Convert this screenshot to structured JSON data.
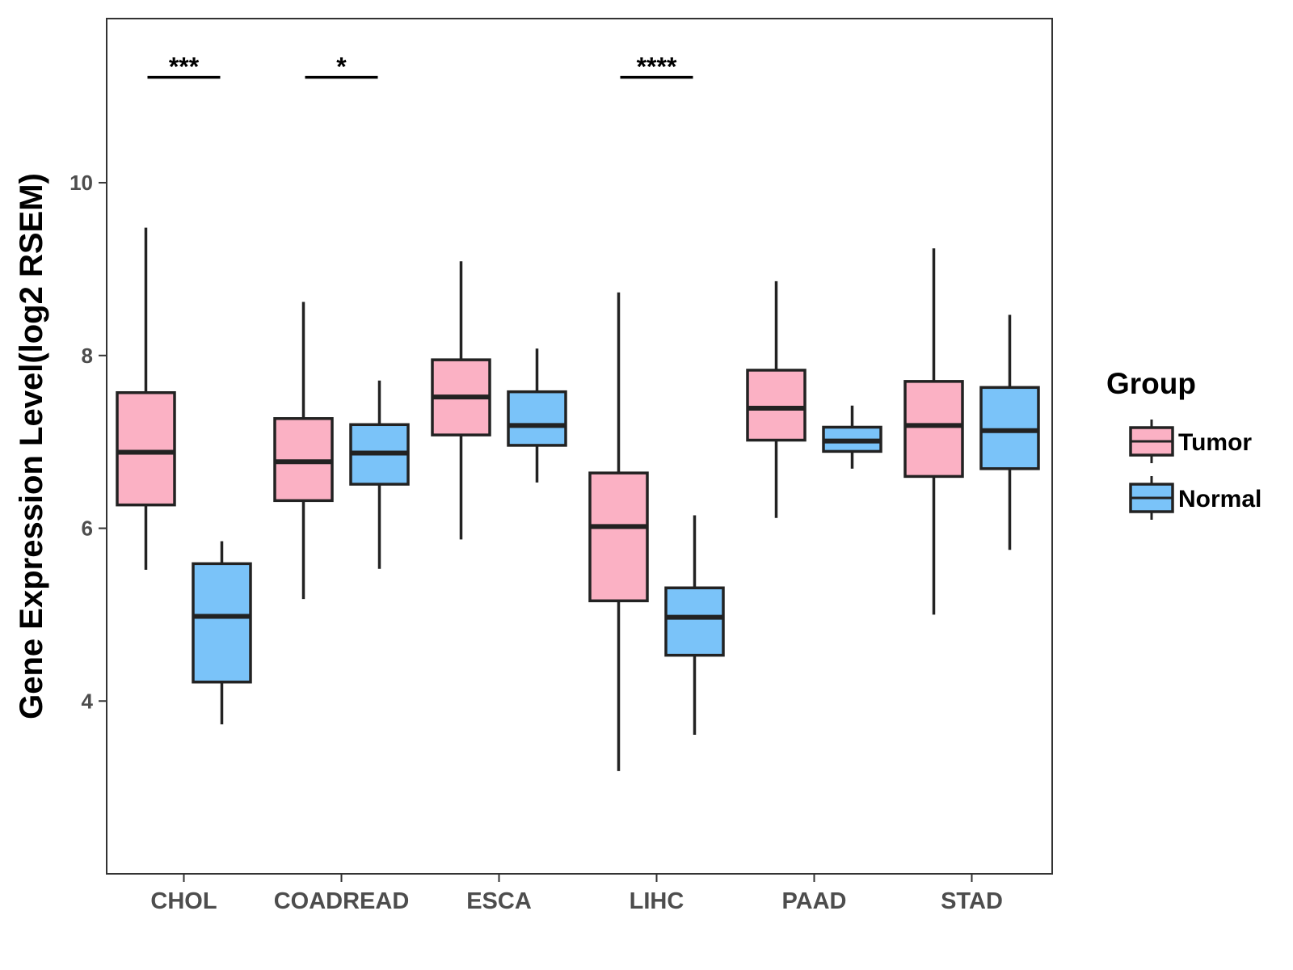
{
  "chart_data": {
    "type": "boxplot",
    "title": "",
    "xlabel": "",
    "ylabel": "Gene Expression Level(log2 RSEM)",
    "ylim": [
      2.0,
      11.9
    ],
    "yticks": [
      4,
      6,
      8,
      10
    ],
    "grid": false,
    "legend_position": "right",
    "categories": [
      "CHOL",
      "COADREAD",
      "ESCA",
      "LIHC",
      "PAAD",
      "STAD"
    ],
    "series": [
      {
        "name": "Tumor",
        "color": "#FBB1C4",
        "boxes": [
          {
            "whisker_low": 5.52,
            "q1": 6.27,
            "median": 6.88,
            "q3": 7.57,
            "whisker_high": 9.48
          },
          {
            "whisker_low": 5.18,
            "q1": 6.32,
            "median": 6.77,
            "q3": 7.27,
            "whisker_high": 8.62
          },
          {
            "whisker_low": 5.87,
            "q1": 7.08,
            "median": 7.52,
            "q3": 7.95,
            "whisker_high": 9.09
          },
          {
            "whisker_low": 3.19,
            "q1": 5.16,
            "median": 6.02,
            "q3": 6.64,
            "whisker_high": 8.73
          },
          {
            "whisker_low": 6.12,
            "q1": 7.02,
            "median": 7.39,
            "q3": 7.83,
            "whisker_high": 8.86
          },
          {
            "whisker_low": 5.0,
            "q1": 6.6,
            "median": 7.19,
            "q3": 7.7,
            "whisker_high": 9.24
          }
        ]
      },
      {
        "name": "Normal",
        "color": "#7AC3F9",
        "boxes": [
          {
            "whisker_low": 3.73,
            "q1": 4.22,
            "median": 4.98,
            "q3": 5.59,
            "whisker_high": 5.85
          },
          {
            "whisker_low": 5.53,
            "q1": 6.51,
            "median": 6.87,
            "q3": 7.2,
            "whisker_high": 7.71
          },
          {
            "whisker_low": 6.53,
            "q1": 6.96,
            "median": 7.19,
            "q3": 7.58,
            "whisker_high": 8.08
          },
          {
            "whisker_low": 3.61,
            "q1": 4.53,
            "median": 4.97,
            "q3": 5.31,
            "whisker_high": 6.15
          },
          {
            "whisker_low": 6.69,
            "q1": 6.89,
            "median": 7.01,
            "q3": 7.17,
            "whisker_high": 7.42
          },
          {
            "whisker_low": 5.75,
            "q1": 6.69,
            "median": 7.13,
            "q3": 7.63,
            "whisker_high": 8.47
          }
        ]
      }
    ],
    "significance": [
      {
        "category": "CHOL",
        "label": "***",
        "y": 11.22
      },
      {
        "category": "COADREAD",
        "label": "*",
        "y": 11.22
      },
      {
        "category": "LIHC",
        "label": "****",
        "y": 11.22
      }
    ],
    "legend": {
      "title": "Group",
      "items": [
        "Tumor",
        "Normal"
      ]
    }
  }
}
